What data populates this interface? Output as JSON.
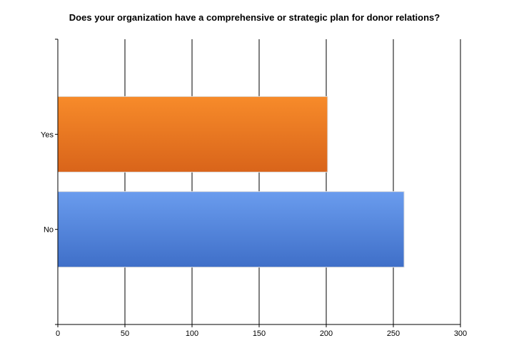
{
  "chart_data": {
    "type": "bar",
    "orientation": "horizontal",
    "title": "Does your organization have a comprehensive or strategic plan for donor relations?",
    "categories": [
      "Yes",
      "No"
    ],
    "values": [
      201,
      258
    ],
    "xlim": [
      0,
      300
    ],
    "x_ticks": [
      0,
      50,
      100,
      150,
      200,
      250,
      300
    ],
    "grid": true,
    "colors": [
      "#ef7f22",
      "#5b8fe3"
    ]
  }
}
